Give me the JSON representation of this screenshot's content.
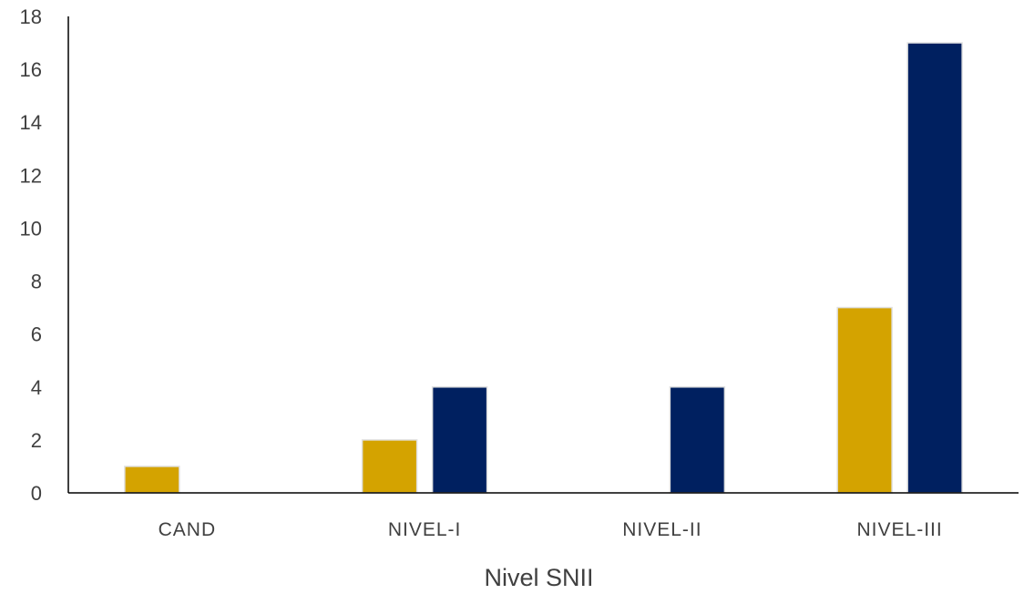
{
  "chart_data": {
    "type": "bar",
    "title": "",
    "xlabel": "Nivel SNII",
    "ylabel": "",
    "categories": [
      "CAND",
      "NIVEL-I",
      "NIVEL-II",
      "NIVEL-III"
    ],
    "series": [
      {
        "color": "#D4A300",
        "values": [
          1,
          2,
          0,
          7
        ]
      },
      {
        "color": "#002060",
        "values": [
          0,
          4,
          4,
          17
        ]
      }
    ],
    "ylim": [
      0,
      18
    ],
    "yticks": [
      0,
      2,
      4,
      6,
      8,
      10,
      12,
      14,
      16,
      18
    ],
    "grid": false,
    "legend": "none"
  }
}
